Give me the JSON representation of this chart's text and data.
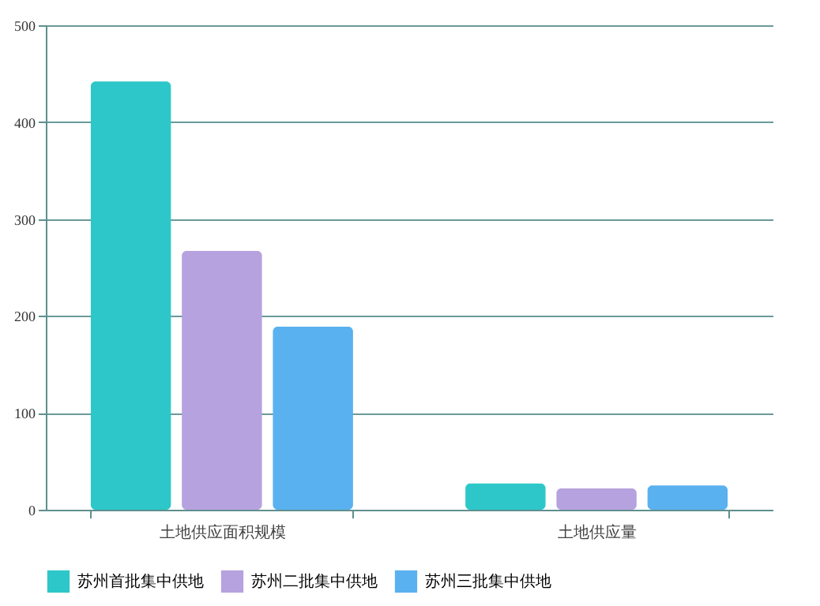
{
  "chart_data": {
    "type": "bar",
    "categories": [
      "土地供应面积规模",
      "土地供应量"
    ],
    "series": [
      {
        "name": "苏州首批集中供地",
        "color": "#2ec7c9",
        "values": [
          442,
          27
        ]
      },
      {
        "name": "苏州二批集中供地",
        "color": "#b6a2de",
        "values": [
          267,
          22
        ]
      },
      {
        "name": "苏州三批集中供地",
        "color": "#5ab1ef",
        "values": [
          189,
          25
        ]
      }
    ],
    "ylim": [
      0,
      500
    ],
    "yticks": [
      0,
      100,
      200,
      300,
      400,
      500
    ],
    "grid": "y",
    "legend": "bottom"
  }
}
